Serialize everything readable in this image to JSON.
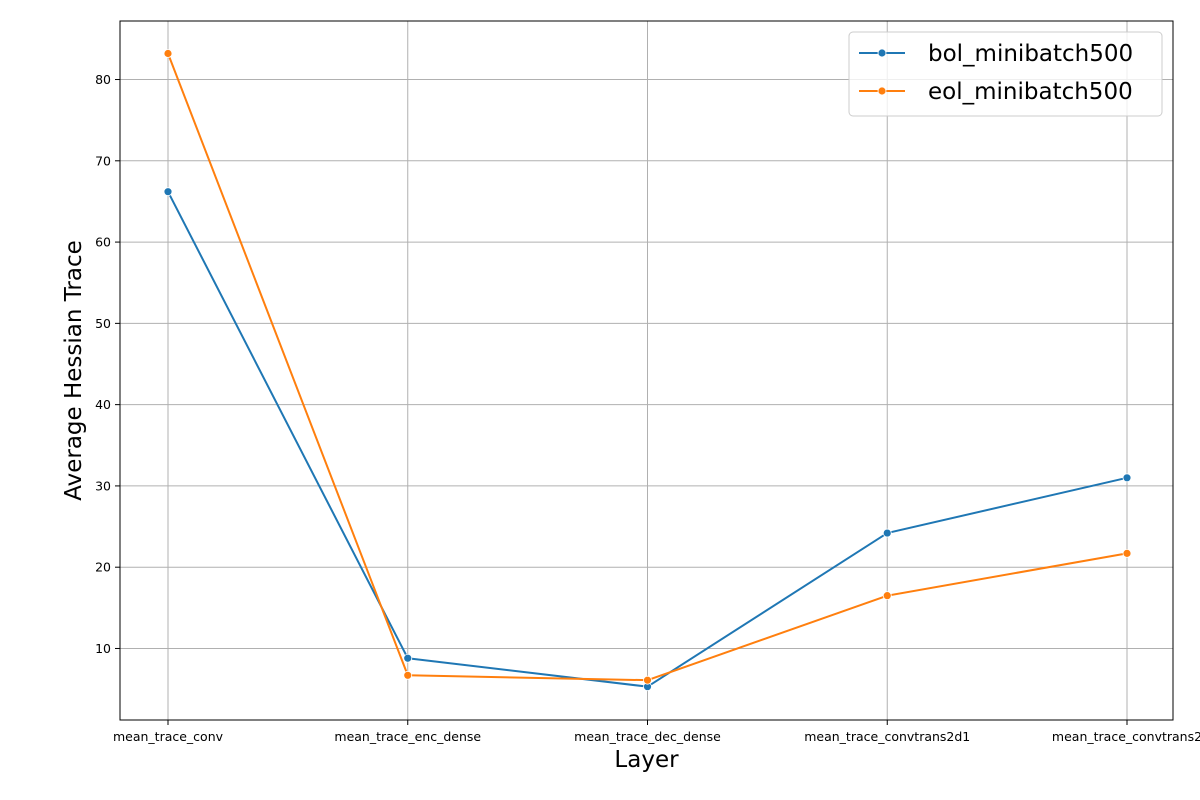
{
  "chart_data": {
    "type": "line",
    "title": "",
    "xlabel": "Layer",
    "ylabel": "Average Hessian Trace",
    "categories": [
      "mean_trace_conv",
      "mean_trace_enc_dense",
      "mean_trace_dec_dense",
      "mean_trace_convtrans2d1",
      "mean_trace_convtrans2"
    ],
    "yticks": [
      10,
      20,
      30,
      40,
      50,
      60,
      70,
      80
    ],
    "ylim": [
      1.2,
      87.2
    ],
    "grid": true,
    "legend_position": "top-right",
    "series": [
      {
        "name": "bol_minibatch500",
        "color": "#1f77b4",
        "values": [
          66.2,
          8.8,
          5.3,
          24.2,
          31.0
        ]
      },
      {
        "name": "eol_minibatch500",
        "color": "#ff7f0e",
        "values": [
          83.2,
          6.7,
          6.1,
          16.5,
          21.7
        ]
      }
    ]
  }
}
